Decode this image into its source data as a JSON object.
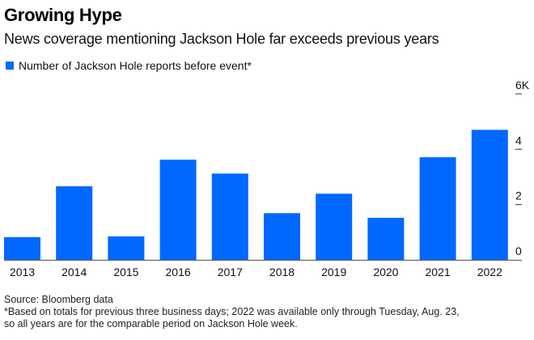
{
  "chart_data": {
    "type": "bar",
    "title": "Growing Hype",
    "subtitle": "News coverage mentioning Jackson Hole far exceeds previous years",
    "categories": [
      "2013",
      "2014",
      "2015",
      "2016",
      "2017",
      "2018",
      "2019",
      "2020",
      "2021",
      "2022"
    ],
    "series": [
      {
        "name": "Number of Jackson Hole reports before event*",
        "color": "#0068ff",
        "values": [
          820,
          2660,
          850,
          3620,
          3120,
          1690,
          2390,
          1520,
          3710,
          4700
        ]
      }
    ],
    "xlabel": "",
    "ylabel": "",
    "ylim": [
      0,
      6000
    ],
    "yticks": [
      {
        "value": 0,
        "label": "0"
      },
      {
        "value": 2000,
        "label": "2"
      },
      {
        "value": 4000,
        "label": "4"
      },
      {
        "value": 6000,
        "label": "6K"
      }
    ],
    "y_axis_side": "right",
    "grid": false,
    "legend_position": "top-left"
  },
  "footer": {
    "source": "Source: Bloomberg data",
    "note_line1": "*Based on totals for previous three business days; 2022 was available only through Tuesday, Aug. 23,",
    "note_line2": "so all years are for the comparable period on Jackson Hole week."
  },
  "colors": {
    "bar": "#0068ff",
    "axis": "#666666",
    "text": "#111111"
  }
}
